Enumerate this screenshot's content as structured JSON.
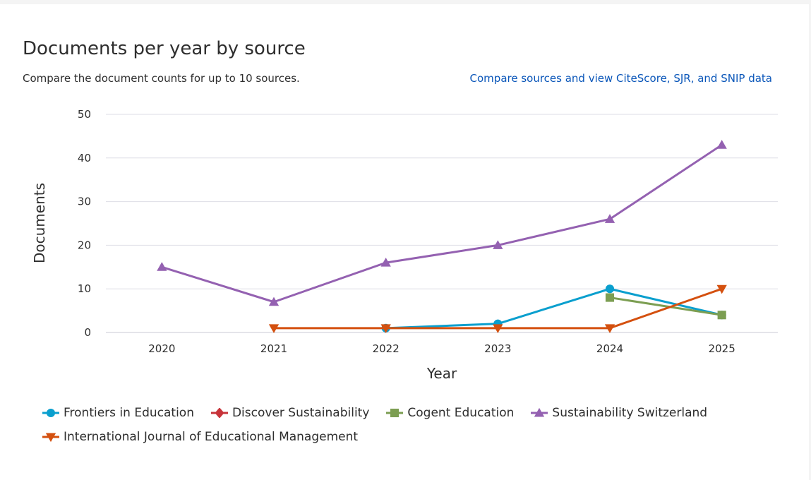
{
  "header": {
    "title": "Documents per year by source",
    "subtitle": "Compare the document counts for up to 10 sources.",
    "compare_link": "Compare sources and view CiteScore, SJR, and SNIP data"
  },
  "chart_data": {
    "type": "line",
    "title": "Documents per year by source",
    "xlabel": "Year",
    "ylabel": "Documents",
    "categories": [
      "2020",
      "2021",
      "2022",
      "2023",
      "2024",
      "2025"
    ],
    "yticks": [
      0,
      10,
      20,
      30,
      40,
      50
    ],
    "ylim": [
      0,
      50
    ],
    "grid": true,
    "legend_position": "bottom",
    "series": [
      {
        "name": "Frontiers in Education",
        "color": "#0a9fce",
        "marker": "circle",
        "values": [
          null,
          null,
          1,
          2,
          10,
          4
        ]
      },
      {
        "name": "Discover Sustainability",
        "color": "#c7343a",
        "marker": "diamond",
        "values": [
          null,
          null,
          null,
          null,
          null,
          null
        ]
      },
      {
        "name": "Cogent Education",
        "color": "#7c9e52",
        "marker": "square",
        "values": [
          null,
          null,
          null,
          null,
          8,
          4
        ]
      },
      {
        "name": "Sustainability Switzerland",
        "color": "#9461b1",
        "marker": "triangle-up",
        "values": [
          15,
          7,
          16,
          20,
          26,
          43
        ]
      },
      {
        "name": "International Journal of Educational Management",
        "color": "#d4500f",
        "marker": "triangle-down",
        "values": [
          null,
          1,
          1,
          1,
          1,
          10
        ]
      }
    ]
  }
}
